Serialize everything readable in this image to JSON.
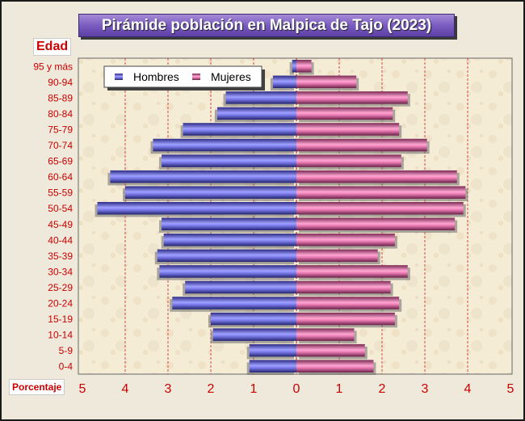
{
  "chart_data": {
    "type": "bar",
    "title": "Pirámide población en Malpica de Tajo (2023)",
    "ylabel": "Edad",
    "xlabel": "Porcentaje",
    "categories": [
      "95 y más",
      "90-94",
      "85-89",
      "80-84",
      "75-79",
      "70-74",
      "65-69",
      "60-64",
      "55-59",
      "50-54",
      "45-49",
      "40-44",
      "35-39",
      "30-34",
      "25-29",
      "20-24",
      "15-19",
      "10-14",
      "5-9",
      "0-4"
    ],
    "series": [
      {
        "name": "Hombres",
        "color": "#6666ee",
        "values": [
          0.1,
          0.55,
          1.65,
          1.85,
          2.65,
          3.35,
          3.15,
          4.35,
          4.0,
          4.65,
          3.15,
          3.1,
          3.25,
          3.2,
          2.6,
          2.9,
          2.0,
          1.95,
          1.1,
          1.1
        ]
      },
      {
        "name": "Mujeres",
        "color": "#ee88bb",
        "values": [
          0.35,
          1.4,
          2.6,
          2.25,
          2.4,
          3.05,
          2.45,
          3.75,
          3.95,
          3.9,
          3.7,
          2.3,
          1.9,
          2.6,
          2.2,
          2.4,
          2.3,
          1.35,
          1.6,
          1.8
        ]
      }
    ],
    "xticks": [
      "5",
      "4",
      "3",
      "2",
      "1",
      "0",
      "1",
      "2",
      "3",
      "4",
      "5"
    ],
    "xlim": [
      -5,
      5
    ],
    "grid": true,
    "legend_position": "top-left",
    "tick_color": "#cc0000"
  }
}
